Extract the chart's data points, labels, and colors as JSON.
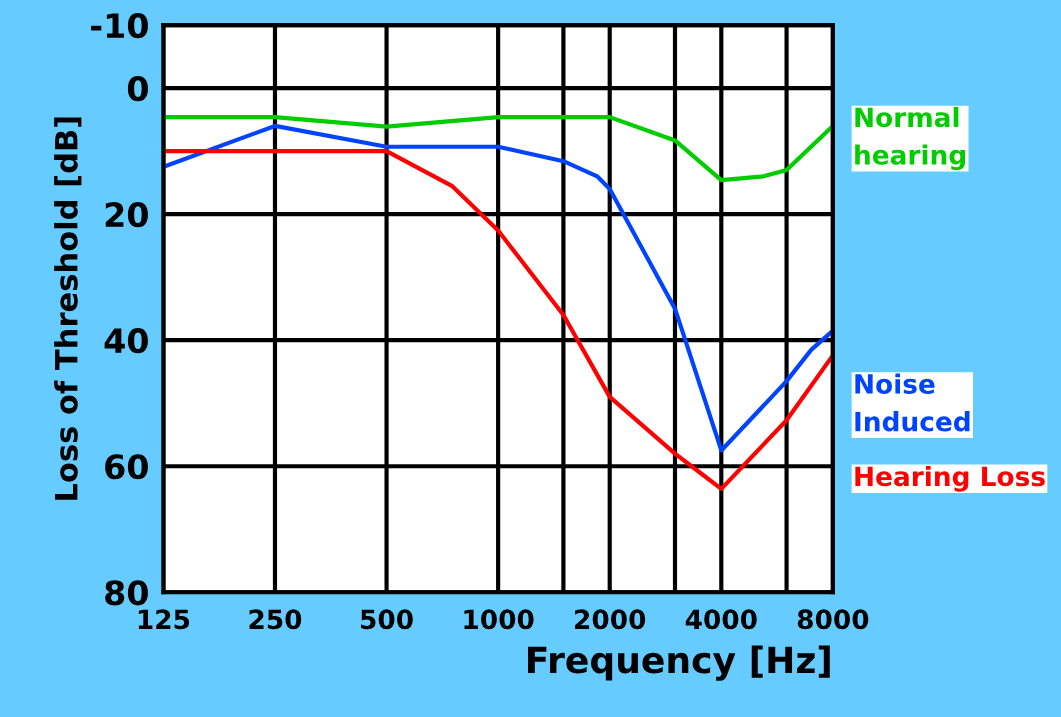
{
  "chart_data": {
    "type": "line",
    "xlabel": "Frequency [Hz]",
    "ylabel": "Loss of Threshold [dB]",
    "log": "x",
    "xlim": [
      125,
      8000
    ],
    "xticks": [
      125,
      250,
      500,
      1000,
      {
        "value": 1500,
        "label": null
      },
      2000,
      {
        "value": 3000,
        "label": null
      },
      4000,
      {
        "value": 6000,
        "label": null
      },
      8000
    ],
    "ylim": [
      80,
      -10
    ],
    "yticks": [
      -10,
      0,
      20,
      40,
      60,
      80
    ],
    "grid": true,
    "legend": false,
    "marker": "none",
    "line_style": "solid",
    "series": [
      {
        "name": "Normal\nhearing",
        "color": "#00cc00",
        "x": [
          125,
          250,
          500,
          1000,
          2000,
          3000,
          4000,
          5200,
          6000,
          8000
        ],
        "values": [
          4.6,
          4.6,
          6.1,
          4.6,
          4.6,
          8.3,
          14.6,
          14,
          13,
          6
        ]
      },
      {
        "name": "Noise\nInduced",
        "color": "#0044ff",
        "x": [
          125,
          250,
          500,
          1000,
          1500,
          1850,
          2000,
          3000,
          4000,
          6000,
          7000,
          8000
        ],
        "values": [
          12.5,
          6,
          9.3,
          9.3,
          11.6,
          14,
          16,
          35,
          57.5,
          46.5,
          41.5,
          38.5
        ]
      },
      {
        "name": "Hearing Loss",
        "color": "#ff0000",
        "x": [
          125,
          250,
          500,
          750,
          1000,
          1500,
          2000,
          3000,
          3500,
          4000,
          6000,
          8000
        ],
        "values": [
          10,
          10,
          10,
          15.5,
          22.6,
          36,
          49,
          58,
          61,
          63.6,
          52.7,
          42.4
        ]
      }
    ]
  }
}
